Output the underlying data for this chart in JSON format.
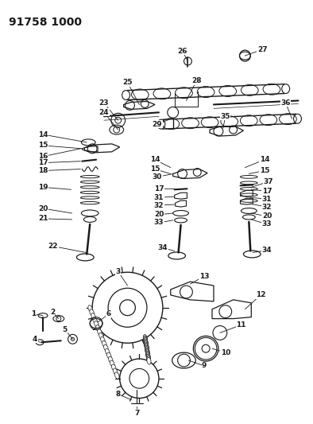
{
  "title": "91758 1000",
  "bg_color": "#ffffff",
  "line_color": "#1a1a1a",
  "title_fontsize": 10,
  "label_fontsize": 6.5,
  "fig_width": 3.94,
  "fig_height": 5.33
}
